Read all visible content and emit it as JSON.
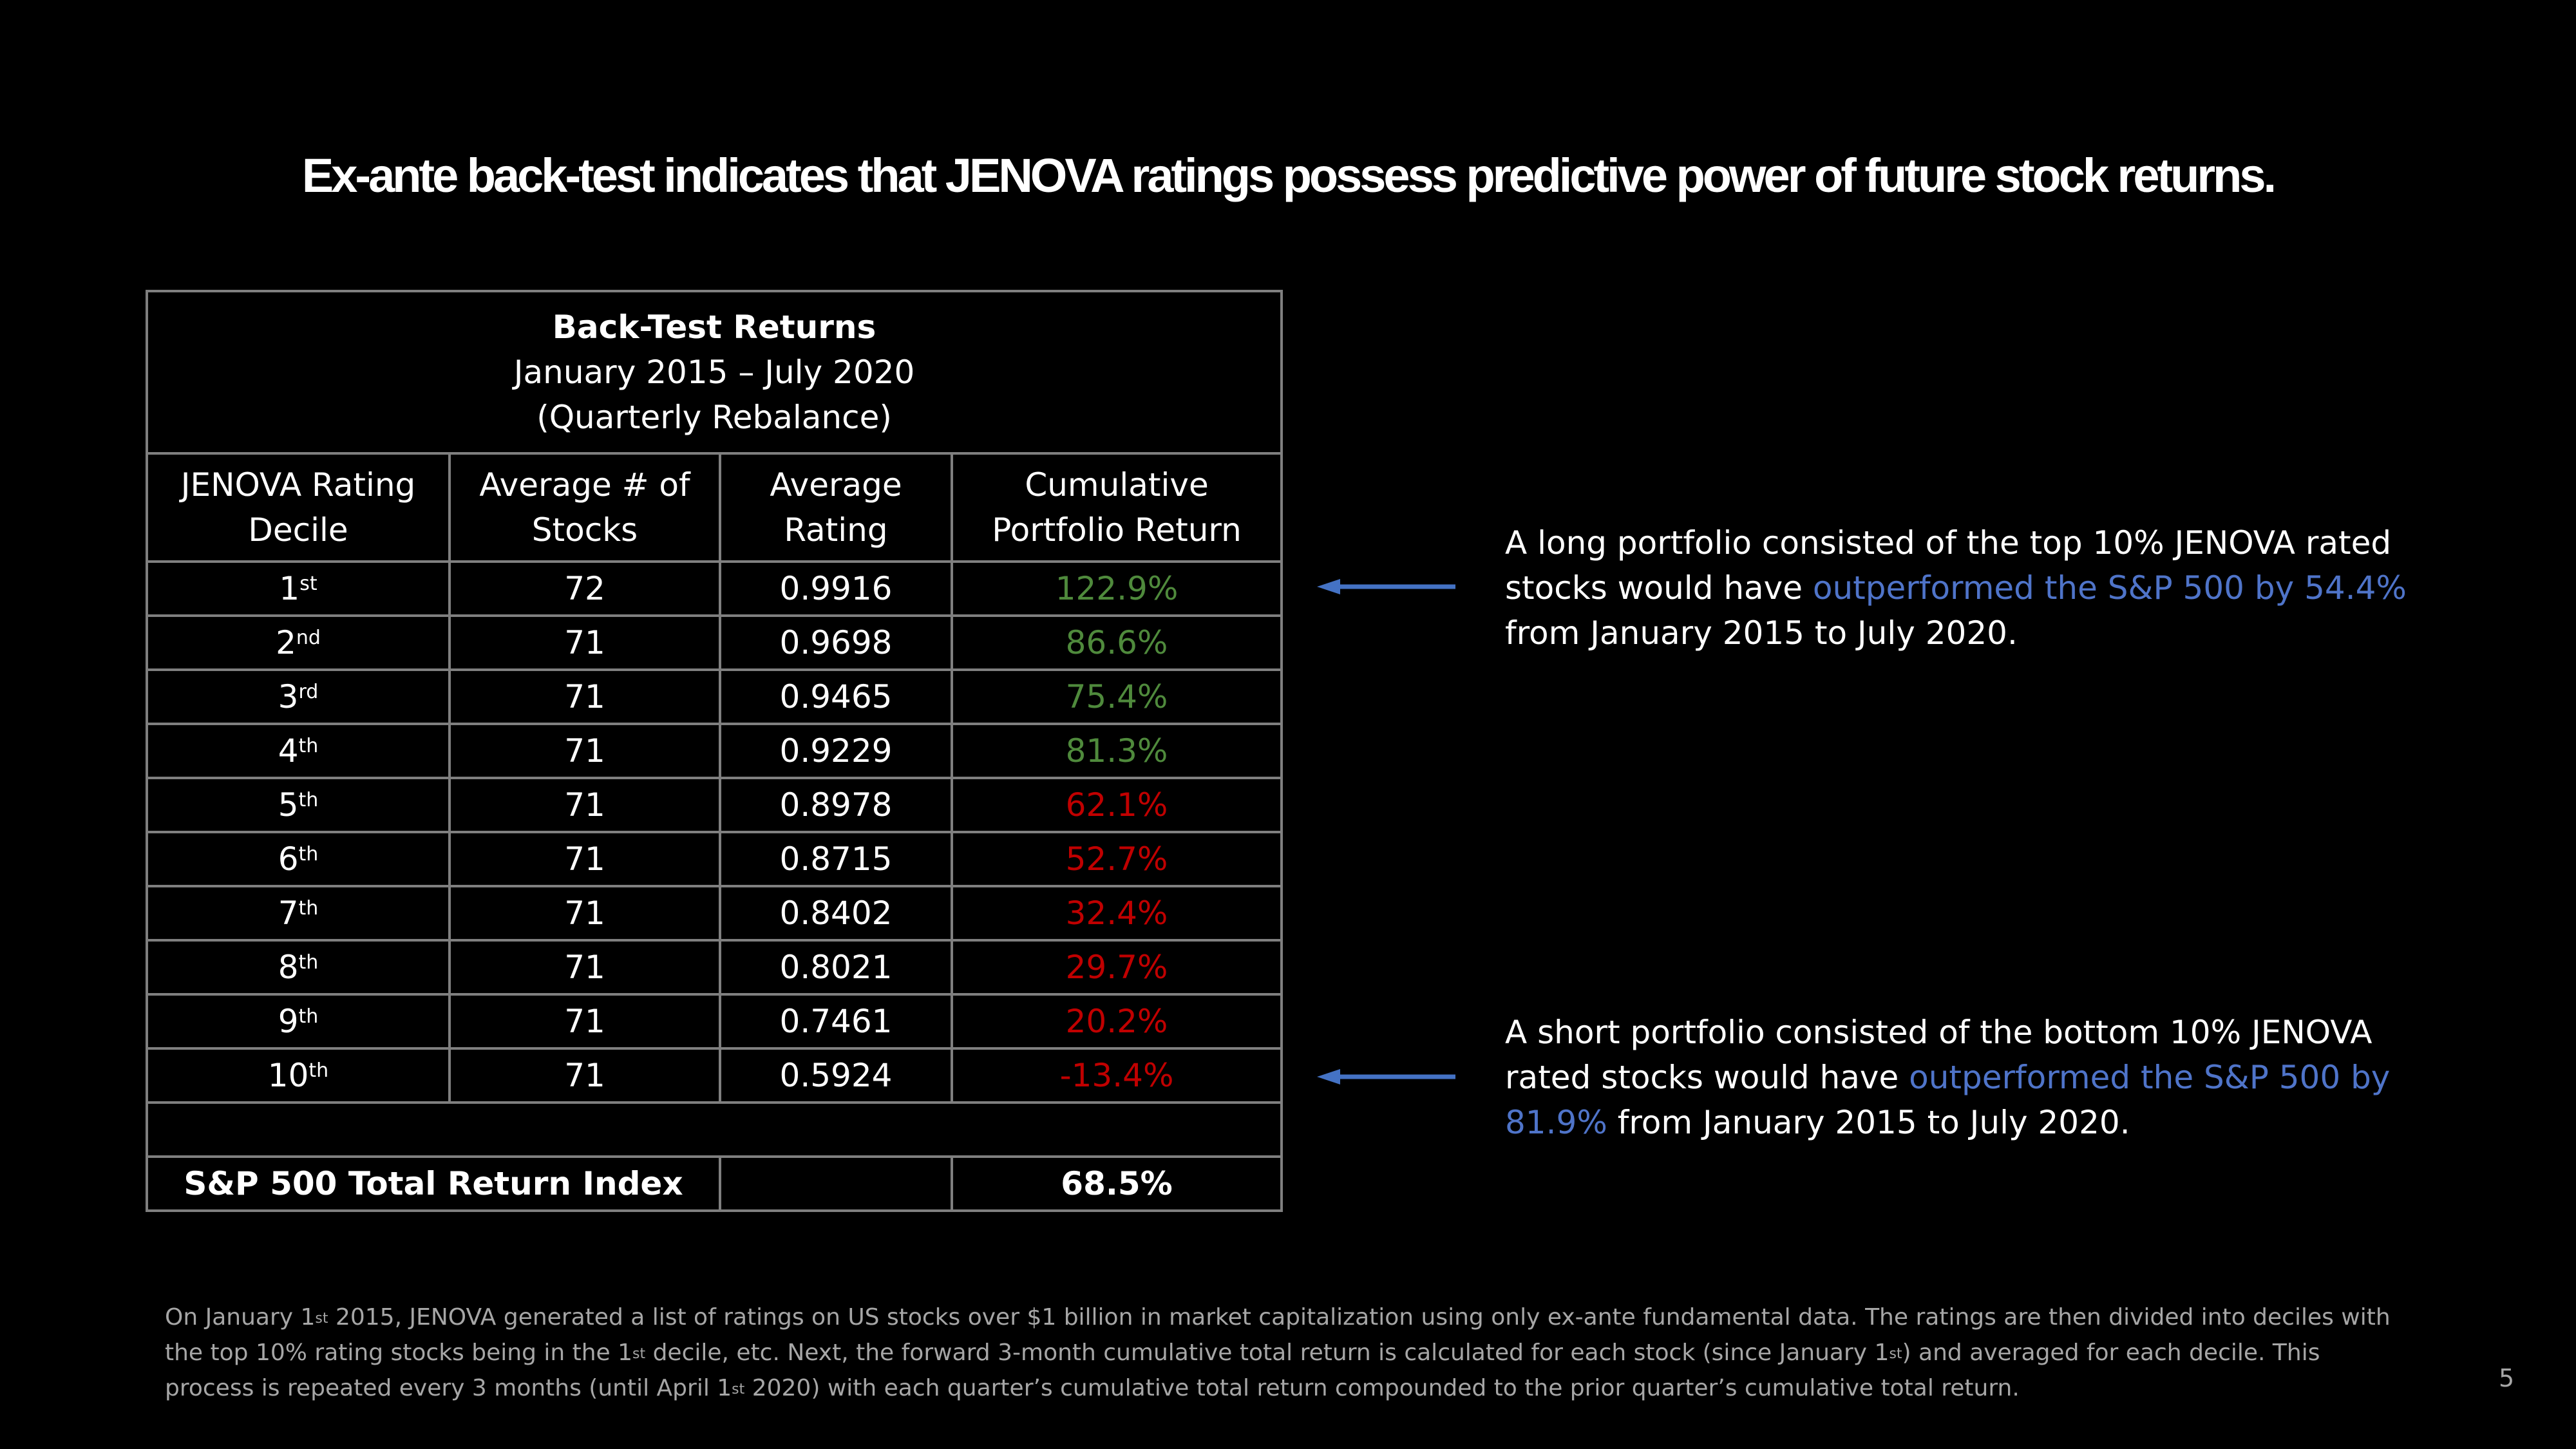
{
  "title": "Ex-ante back-test indicates that JENOVA ratings possess predictive power of future stock returns.",
  "table": {
    "heading": "Back-Test Returns",
    "period": "January 2015 – July 2020",
    "rebalance": "(Quarterly Rebalance)",
    "columns": {
      "c1a": "JENOVA Rating",
      "c1b": "Decile",
      "c2a": "Average # of",
      "c2b": "Stocks",
      "c3a": "Average",
      "c3b": "Rating",
      "c4a": "Cumulative",
      "c4b": "Portfolio Return"
    },
    "rows": [
      {
        "num": "1",
        "sup": "st",
        "stocks": "72",
        "rating": "0.9916",
        "ret": "122.9%",
        "color": "green"
      },
      {
        "num": "2",
        "sup": "nd",
        "stocks": "71",
        "rating": "0.9698",
        "ret": "86.6%",
        "color": "green"
      },
      {
        "num": "3",
        "sup": "rd",
        "stocks": "71",
        "rating": "0.9465",
        "ret": "75.4%",
        "color": "green"
      },
      {
        "num": "4",
        "sup": "th",
        "stocks": "71",
        "rating": "0.9229",
        "ret": "81.3%",
        "color": "green"
      },
      {
        "num": "5",
        "sup": "th",
        "stocks": "71",
        "rating": "0.8978",
        "ret": "62.1%",
        "color": "red"
      },
      {
        "num": "6",
        "sup": "th",
        "stocks": "71",
        "rating": "0.8715",
        "ret": "52.7%",
        "color": "red"
      },
      {
        "num": "7",
        "sup": "th",
        "stocks": "71",
        "rating": "0.8402",
        "ret": "32.4%",
        "color": "red"
      },
      {
        "num": "8",
        "sup": "th",
        "stocks": "71",
        "rating": "0.8021",
        "ret": "29.7%",
        "color": "red"
      },
      {
        "num": "9",
        "sup": "th",
        "stocks": "71",
        "rating": "0.7461",
        "ret": "20.2%",
        "color": "red"
      },
      {
        "num": "10",
        "sup": "th",
        "stocks": "71",
        "rating": "0.5924",
        "ret": "-13.4%",
        "color": "red"
      }
    ],
    "benchmark_label": "S&P 500 Total Return Index",
    "benchmark_value": "68.5%"
  },
  "notes": {
    "long": {
      "line1": "A long portfolio consisted of the top 10% JENOVA rated",
      "line2_pre": "stocks would have ",
      "line2_hl": "outperformed the S&P 500 by 54.4%",
      "line3": "from January 2015 to July 2020."
    },
    "short": {
      "line1": "A short portfolio consisted of the bottom 10% JENOVA",
      "line2_pre": "rated stocks would have ",
      "line2_hl": "outperformed the S&P 500 by",
      "line3_hl": "81.9%",
      "line3_post": " from January 2015 to July 2020."
    }
  },
  "footnote": {
    "p1": "On January 1",
    "s1": "st",
    "p2": " 2015, JENOVA generated a list of ratings on US stocks over $1 billion in market capitalization using only ex-ante fundamental data. The ratings are then divided into deciles with the top 10% rating stocks being in the 1",
    "s2": "st",
    "p3": " decile, etc. Next, the forward 3-month cumulative total return is calculated for each stock (since January 1",
    "s3": "st",
    "p4": ") and averaged for each decile. This process is repeated every 3 months (until April 1",
    "s4": "st",
    "p5": " 2020) with each quarter’s cumulative total return compounded to the prior quarter’s cumulative total return."
  },
  "page_number": "5",
  "colors": {
    "green": "#4f8a3c",
    "red": "#c00000",
    "blue": "#4f74c9",
    "arrow": "#4472c4"
  }
}
